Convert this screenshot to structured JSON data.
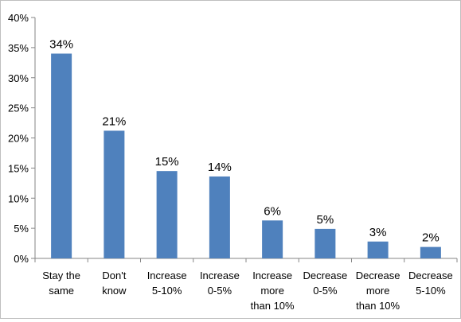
{
  "chart_data": {
    "type": "bar",
    "categories": [
      [
        "Stay the",
        "same"
      ],
      [
        "Don't",
        "know"
      ],
      [
        "Increase",
        "5-10%"
      ],
      [
        "Increase",
        "0-5%"
      ],
      [
        "Increase",
        "more",
        "than 10%"
      ],
      [
        "Decrease",
        "0-5%"
      ],
      [
        "Decrease",
        "more",
        "than 10%"
      ],
      [
        "Decrease",
        "5-10%"
      ]
    ],
    "values": [
      34,
      21.2,
      14.5,
      13.6,
      6.3,
      4.9,
      2.8,
      1.9
    ],
    "data_labels": [
      "34%",
      "21%",
      "15%",
      "14%",
      "6%",
      "5%",
      "3%",
      "2%"
    ],
    "y_ticks": [
      "0%",
      "5%",
      "10%",
      "15%",
      "20%",
      "25%",
      "30%",
      "35%",
      "40%"
    ],
    "ylim": [
      0,
      40
    ],
    "y_unit": "%",
    "title": "",
    "xlabel": "",
    "ylabel": "",
    "grid": false,
    "legend": "none",
    "bar_color": "#4f81bd",
    "axis_color": "#868686"
  }
}
